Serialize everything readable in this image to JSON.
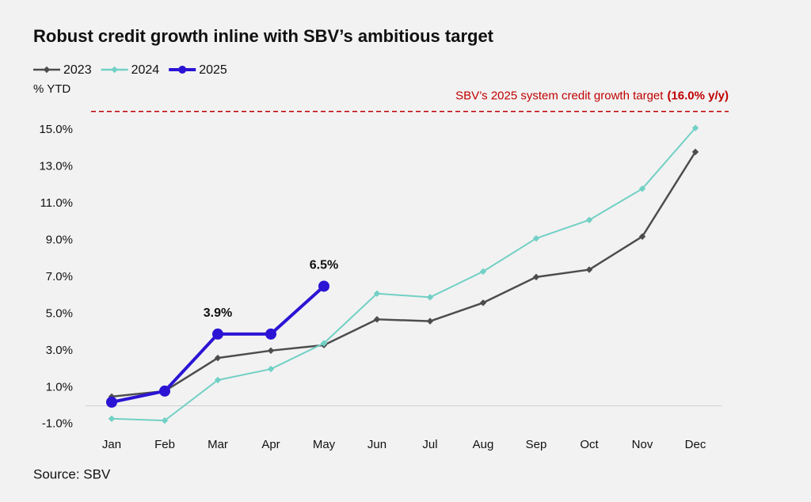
{
  "chart_data": {
    "type": "line",
    "title": "Robust credit growth inline with SBV’s ambitious target",
    "y_label": "% YTD",
    "source": "Source: SBV",
    "categories": [
      "Jan",
      "Feb",
      "Mar",
      "Apr",
      "May",
      "Jun",
      "Jul",
      "Aug",
      "Sep",
      "Oct",
      "Nov",
      "Dec"
    ],
    "series": [
      {
        "name": "2023",
        "color": "#4d4d4d",
        "marker": "diamond",
        "values": [
          0.5,
          0.8,
          2.6,
          3.0,
          3.3,
          4.7,
          4.6,
          5.6,
          7.0,
          7.4,
          9.2,
          13.8
        ]
      },
      {
        "name": "2024",
        "color": "#72d0c5",
        "marker": "diamond",
        "values": [
          -0.7,
          -0.8,
          1.4,
          2.0,
          3.4,
          6.1,
          5.9,
          7.3,
          9.1,
          10.1,
          11.8,
          15.1
        ]
      },
      {
        "name": "2025",
        "color": "#2b14d4",
        "marker": "circle",
        "values": [
          0.2,
          0.8,
          3.9,
          3.9,
          6.5,
          null,
          null,
          null,
          null,
          null,
          null,
          null
        ],
        "value_labels": [
          null,
          null,
          "3.9%",
          null,
          "6.5%",
          null,
          null,
          null,
          null,
          null,
          null,
          null
        ]
      }
    ],
    "target": {
      "value": 16,
      "text": "SBV’s 2025 system credit growth target",
      "label": "(16.0% y/y)",
      "color": "#c00000"
    },
    "ylim": [
      -2,
      17
    ],
    "yticks": [
      {
        "value": -1,
        "label": "-1.0%"
      },
      {
        "value": 1,
        "label": "1.0%"
      },
      {
        "value": 3,
        "label": "3.0%"
      },
      {
        "value": 5,
        "label": "5.0%"
      },
      {
        "value": 7,
        "label": "7.0%"
      },
      {
        "value": 9,
        "label": "9.0%"
      },
      {
        "value": 11,
        "label": "11.0%"
      },
      {
        "value": 13,
        "label": "13.0%"
      },
      {
        "value": 15,
        "label": "15.0%"
      }
    ],
    "grid": false,
    "legend": "top-left"
  }
}
